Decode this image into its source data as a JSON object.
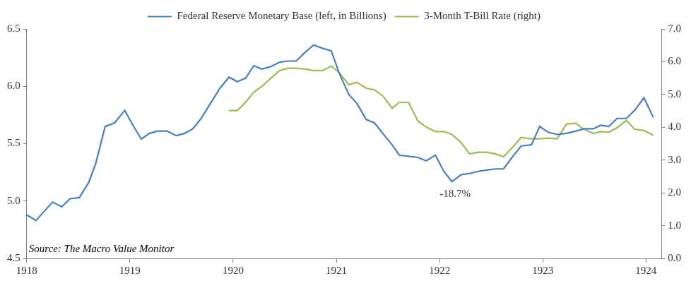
{
  "chart_data": {
    "type": "line",
    "legend": "top",
    "grid": false,
    "annotations": [
      {
        "text": "-18.7%",
        "x": 1922.15,
        "y": 5.06
      }
    ],
    "source": "Source: The Macro Value Monitor",
    "x": [
      1918.0,
      1918.09,
      1918.17,
      1918.25,
      1918.34,
      1918.42,
      1918.51,
      1918.6,
      1918.67,
      1918.76,
      1918.85,
      1918.95,
      1919.03,
      1919.11,
      1919.19,
      1919.27,
      1919.36,
      1919.45,
      1919.53,
      1919.61,
      1919.69,
      1919.78,
      1919.87,
      1919.96,
      1920.04,
      1920.12,
      1920.2,
      1920.28,
      1920.36,
      1920.45,
      1920.53,
      1920.61,
      1920.69,
      1920.78,
      1920.87,
      1920.95,
      1921.03,
      1921.12,
      1921.2,
      1921.29,
      1921.37,
      1921.45,
      1921.54,
      1921.61,
      1921.7,
      1921.79,
      1921.87,
      1921.96,
      1922.04,
      1922.12,
      1922.21,
      1922.29,
      1922.38,
      1922.46,
      1922.54,
      1922.62,
      1922.71,
      1922.79,
      1922.89,
      1922.97,
      1923.05,
      1923.14,
      1923.23,
      1923.32,
      1923.4,
      1923.49,
      1923.56,
      1923.64,
      1923.72,
      1923.81,
      1923.89,
      1923.98,
      1924.07
    ],
    "xlim": [
      1918,
      1924.15
    ],
    "xticks": [
      1918,
      1919,
      1920,
      1921,
      1922,
      1923,
      1924
    ],
    "ylim": [
      4.5,
      6.5
    ],
    "yticks": [
      4.5,
      {
        "value": 5,
        "label": "5.0"
      },
      5.5,
      {
        "value": 6,
        "label": "6.0"
      },
      6.5
    ],
    "y2lim": [
      0,
      7
    ],
    "y2ticks": [
      {
        "value": 0,
        "label": "0.0"
      },
      {
        "value": 1,
        "label": "1.0"
      },
      {
        "value": 2,
        "label": "2.0"
      },
      {
        "value": 3,
        "label": "3.0"
      },
      {
        "value": 4,
        "label": "4.0"
      },
      {
        "value": 5,
        "label": "5.0"
      },
      {
        "value": 6,
        "label": "6.0"
      },
      {
        "value": 7,
        "label": "7.0"
      }
    ],
    "series": [
      {
        "name": "Federal Reserve Monetary Base (left, in Billions)",
        "color": "#4a7ebb",
        "axis": "y",
        "values": [
          4.88,
          4.83,
          4.91,
          4.99,
          4.95,
          5.02,
          5.03,
          5.16,
          5.33,
          5.65,
          5.68,
          5.79,
          5.66,
          5.54,
          5.59,
          5.61,
          5.61,
          5.57,
          5.59,
          5.63,
          5.72,
          5.85,
          5.98,
          6.08,
          6.04,
          6.07,
          6.18,
          6.15,
          6.17,
          6.21,
          6.22,
          6.22,
          6.29,
          6.36,
          6.33,
          6.31,
          6.11,
          5.93,
          5.85,
          5.71,
          5.68,
          5.59,
          5.49,
          5.4,
          5.39,
          5.38,
          5.35,
          5.4,
          5.26,
          5.17,
          5.23,
          5.24,
          5.26,
          5.27,
          5.28,
          5.28,
          5.39,
          5.48,
          5.49,
          5.65,
          5.6,
          5.58,
          5.59,
          5.61,
          5.63,
          5.63,
          5.66,
          5.65,
          5.72,
          5.72,
          5.79,
          5.9,
          5.73
        ]
      },
      {
        "name": "3-Month T-Bill Rate (right)",
        "color": "#9bbb59",
        "axis": "y2",
        "values": [
          null,
          null,
          null,
          null,
          null,
          null,
          null,
          null,
          null,
          null,
          null,
          null,
          null,
          null,
          null,
          null,
          null,
          null,
          null,
          null,
          null,
          null,
          null,
          4.51,
          4.51,
          4.76,
          5.07,
          5.25,
          5.48,
          5.73,
          5.8,
          5.8,
          5.78,
          5.73,
          5.73,
          5.87,
          5.66,
          5.3,
          5.37,
          5.19,
          5.14,
          4.96,
          4.58,
          4.76,
          4.76,
          4.19,
          4.01,
          3.87,
          3.87,
          3.78,
          3.53,
          3.19,
          3.24,
          3.24,
          3.19,
          3.1,
          3.4,
          3.69,
          3.65,
          3.65,
          3.67,
          3.65,
          4.1,
          4.12,
          3.94,
          3.81,
          3.87,
          3.85,
          3.99,
          4.21,
          3.94,
          3.9,
          3.76
        ]
      }
    ]
  }
}
